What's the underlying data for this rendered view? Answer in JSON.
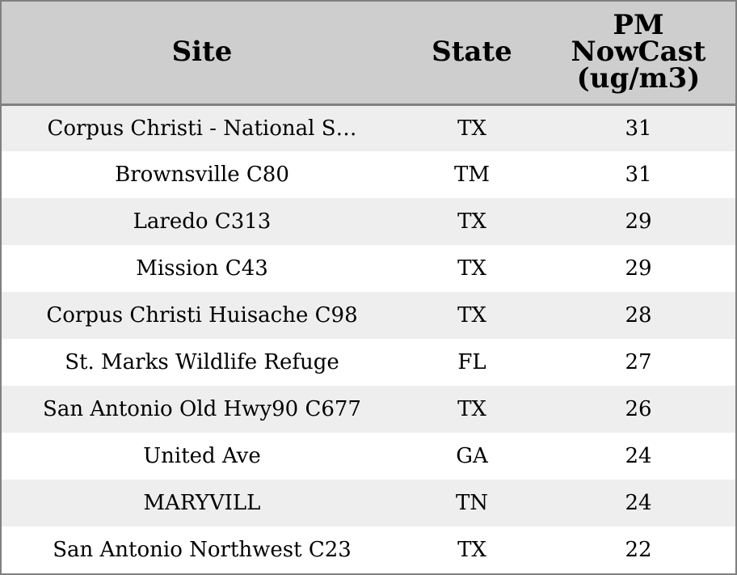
{
  "table": {
    "headers": {
      "site": "Site",
      "state": "State",
      "pm": [
        "PM",
        "NowCast",
        "(ug/m3)"
      ]
    },
    "rows": [
      {
        "site": "Corpus Christi - National S…",
        "state": "TX",
        "pm": "31"
      },
      {
        "site": "Brownsville C80",
        "state": "TM",
        "pm": "31"
      },
      {
        "site": "Laredo C313",
        "state": "TX",
        "pm": "29"
      },
      {
        "site": "Mission C43",
        "state": "TX",
        "pm": "29"
      },
      {
        "site": "Corpus Christi Huisache C98",
        "state": "TX",
        "pm": "28"
      },
      {
        "site": "St. Marks Wildlife Refuge",
        "state": "FL",
        "pm": "27"
      },
      {
        "site": "San Antonio Old Hwy90 C677",
        "state": "TX",
        "pm": "26"
      },
      {
        "site": "United Ave",
        "state": "GA",
        "pm": "24"
      },
      {
        "site": "MARYVILL",
        "state": "TN",
        "pm": "24"
      },
      {
        "site": "San Antonio Northwest C23",
        "state": "TX",
        "pm": "22"
      }
    ]
  },
  "colors": {
    "header_bg": "#cecece",
    "row_alt_bg": "#eeeeee",
    "row_bg": "#ffffff",
    "border": "#808080"
  }
}
